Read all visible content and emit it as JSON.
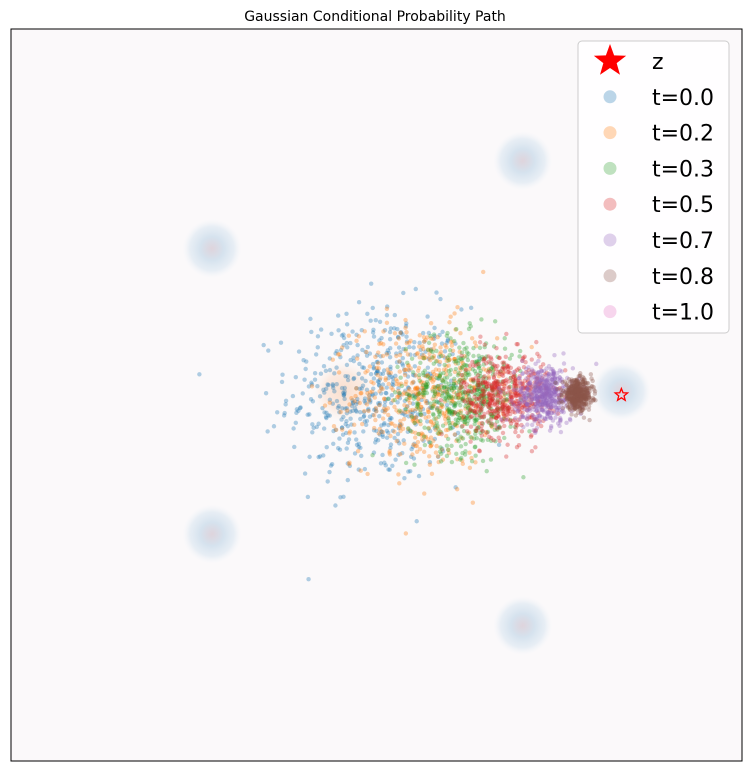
{
  "chart_data": {
    "type": "scatter",
    "title": "Gaussian Conditional Probability Path",
    "xlabel": "",
    "ylabel": "",
    "xlim": [
      -1,
      1
    ],
    "ylim": [
      -1,
      1
    ],
    "axis_ticks_visible": false,
    "grid": false,
    "legend_position": "top-right",
    "background_density": {
      "colormap": "blues-like (faint)",
      "components": [
        {
          "x": 0.4,
          "y": 0.64
        },
        {
          "x": -0.45,
          "y": 0.4
        },
        {
          "x": 0.67,
          "y": 0.01
        },
        {
          "x": -0.45,
          "y": -0.38
        },
        {
          "x": 0.4,
          "y": -0.63
        },
        {
          "x": -0.09,
          "y": 0.01
        }
      ],
      "sigma": 0.13
    },
    "target": {
      "name": "z",
      "x": 0.67,
      "y": 0.0,
      "marker": "star",
      "color": "#ff0000"
    },
    "series": [
      {
        "name": "t=0.0",
        "color": "#1f77b4",
        "mean": [
          0.0,
          0.0
        ],
        "std": 0.12
      },
      {
        "name": "t=0.2",
        "color": "#ff7f0e",
        "mean": [
          0.13,
          0.0
        ],
        "std": 0.098
      },
      {
        "name": "t=0.3",
        "color": "#2ca02c",
        "mean": [
          0.24,
          0.0
        ],
        "std": 0.078
      },
      {
        "name": "t=0.5",
        "color": "#d62728",
        "mean": [
          0.35,
          0.0
        ],
        "std": 0.058
      },
      {
        "name": "t=0.7",
        "color": "#9467bd",
        "mean": [
          0.46,
          0.0
        ],
        "std": 0.039
      },
      {
        "name": "t=0.8",
        "color": "#8c564b",
        "mean": [
          0.55,
          0.0
        ],
        "std": 0.02
      },
      {
        "name": "t=1.0",
        "color": "#e377c2",
        "mean": [
          0.67,
          0.0
        ],
        "std": 0.0
      }
    ],
    "points_per_series": 500
  }
}
